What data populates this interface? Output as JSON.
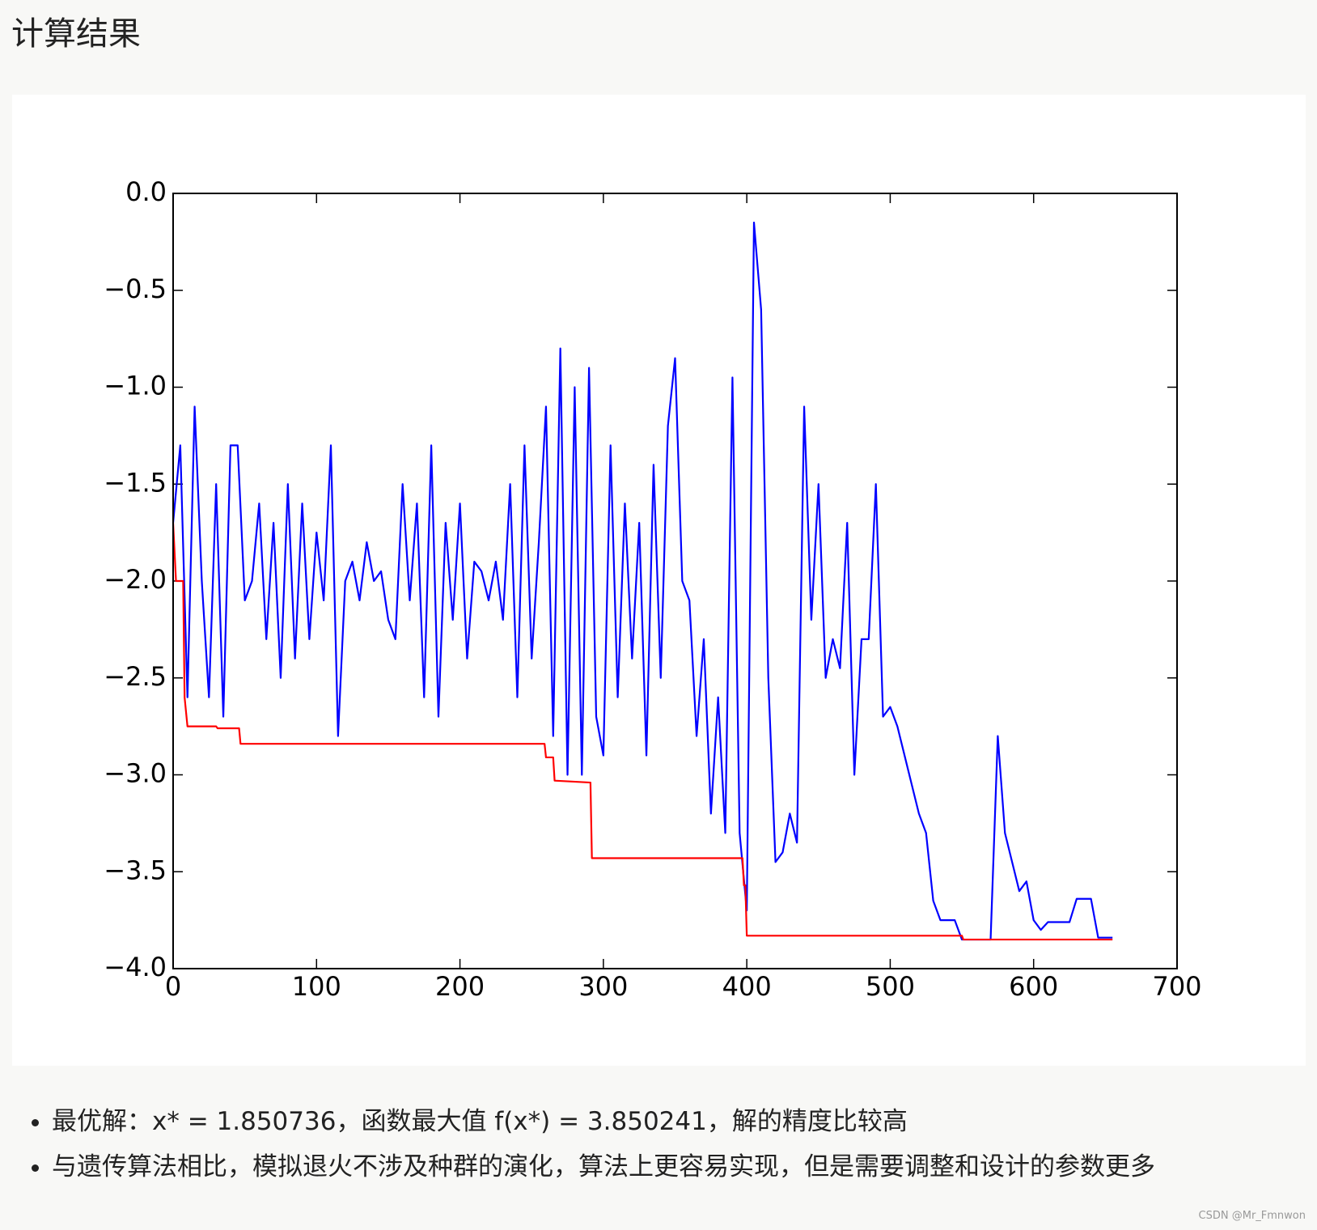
{
  "header": {
    "title": "计算结果"
  },
  "chart_data": {
    "type": "line",
    "series": [
      {
        "color": "#0000ff",
        "x": [
          0,
          5,
          10,
          15,
          20,
          25,
          30,
          35,
          40,
          45,
          50,
          55,
          60,
          65,
          70,
          75,
          80,
          85,
          90,
          95,
          100,
          105,
          110,
          115,
          120,
          125,
          130,
          135,
          140,
          145,
          150,
          155,
          160,
          165,
          170,
          175,
          180,
          185,
          190,
          195,
          200,
          205,
          210,
          215,
          220,
          225,
          230,
          235,
          240,
          245,
          250,
          255,
          260,
          265,
          270,
          275,
          280,
          285,
          290,
          295,
          300,
          305,
          310,
          315,
          320,
          325,
          330,
          335,
          340,
          345,
          350,
          355,
          360,
          365,
          370,
          375,
          380,
          385,
          390,
          395,
          400,
          405,
          410,
          415,
          420,
          425,
          430,
          435,
          440,
          445,
          450,
          455,
          460,
          465,
          470,
          475,
          480,
          485,
          490,
          495,
          500,
          505,
          510,
          515,
          520,
          525,
          530,
          535,
          540,
          545,
          550,
          555,
          560,
          565,
          570,
          575,
          580,
          585,
          590,
          595,
          600,
          605,
          610,
          615,
          620,
          625,
          630,
          635,
          640,
          645,
          650,
          655
        ],
        "values": [
          -1.7,
          -1.3,
          -2.6,
          -1.1,
          -2.0,
          -2.6,
          -1.5,
          -2.7,
          -1.3,
          -1.3,
          -2.1,
          -2.0,
          -1.6,
          -2.3,
          -1.7,
          -2.5,
          -1.5,
          -2.4,
          -1.6,
          -2.3,
          -1.75,
          -2.1,
          -1.3,
          -2.8,
          -2.0,
          -1.9,
          -2.1,
          -1.8,
          -2.0,
          -1.95,
          -2.2,
          -2.3,
          -1.5,
          -2.1,
          -1.6,
          -2.6,
          -1.3,
          -2.7,
          -1.7,
          -2.2,
          -1.6,
          -2.4,
          -1.9,
          -1.95,
          -2.1,
          -1.9,
          -2.2,
          -1.5,
          -2.6,
          -1.3,
          -2.4,
          -1.8,
          -1.1,
          -2.8,
          -0.8,
          -3.0,
          -1.0,
          -3.0,
          -0.9,
          -2.7,
          -2.9,
          -1.3,
          -2.6,
          -1.6,
          -2.4,
          -1.7,
          -2.9,
          -1.4,
          -2.5,
          -1.2,
          -0.85,
          -2.0,
          -2.1,
          -2.8,
          -2.3,
          -3.2,
          -2.6,
          -3.3,
          -0.95,
          -3.3,
          -3.7,
          -0.15,
          -0.6,
          -2.5,
          -3.45,
          -3.4,
          -3.2,
          -3.35,
          -1.1,
          -2.2,
          -1.5,
          -2.5,
          -2.3,
          -2.45,
          -1.7,
          -3.0,
          -2.3,
          -2.3,
          -1.5,
          -2.7,
          -2.65,
          -2.75,
          -2.9,
          -3.05,
          -3.2,
          -3.3,
          -3.65,
          -3.75,
          -3.75,
          -3.75,
          -3.85,
          -3.85,
          -3.85,
          -3.85,
          -3.85,
          -2.8,
          -3.3,
          -3.45,
          -3.6,
          -3.55,
          -3.75,
          -3.8,
          -3.76,
          -3.76,
          -3.76,
          -3.76,
          -3.64,
          -3.64,
          -3.64,
          -3.84,
          -3.84,
          -3.84
        ]
      },
      {
        "color": "#ff0000",
        "x": [
          0,
          2,
          7,
          8,
          10,
          30,
          31,
          46,
          47,
          259,
          260,
          265,
          266,
          291,
          292,
          397,
          398,
          399,
          400,
          550,
          551,
          655
        ],
        "values": [
          -1.7,
          -2.0,
          -2.0,
          -2.6,
          -2.75,
          -2.75,
          -2.76,
          -2.76,
          -2.84,
          -2.84,
          -2.91,
          -2.91,
          -3.03,
          -3.04,
          -3.43,
          -3.43,
          -3.57,
          -3.57,
          -3.83,
          -3.83,
          -3.85,
          -3.85
        ]
      }
    ],
    "xlim": [
      0,
      700
    ],
    "xticks": [
      0,
      100,
      200,
      300,
      400,
      500,
      600,
      700
    ],
    "ylim": [
      -4,
      0
    ],
    "yticks": [
      {
        "value": 0,
        "label": "0.0"
      },
      {
        "value": -0.5,
        "label": "−0.5"
      },
      {
        "value": -1,
        "label": "−1.0"
      },
      {
        "value": -1.5,
        "label": "−1.5"
      },
      {
        "value": -2,
        "label": "−2.0"
      },
      {
        "value": -2.5,
        "label": "−2.5"
      },
      {
        "value": -3,
        "label": "−3.0"
      },
      {
        "value": -3.5,
        "label": "−3.5"
      },
      {
        "value": -4,
        "label": "−4.0"
      }
    ],
    "grid": false
  },
  "bullets": [
    "最优解：x* = 1.850736，函数最大值 f(x*) = 3.850241，解的精度比较高",
    "与遗传算法相比，模拟退火不涉及种群的演化，算法上更容易实现，但是需要调整和设计的参数更多"
  ],
  "watermark": "CSDN @Mr_Fmnwon"
}
